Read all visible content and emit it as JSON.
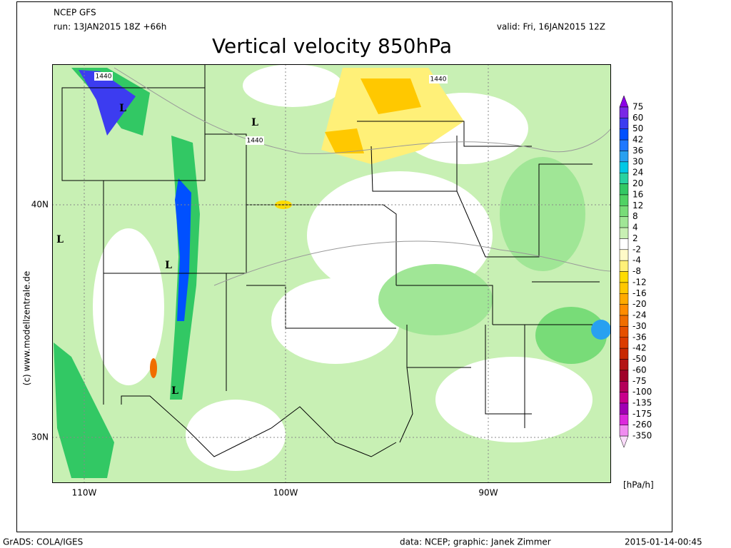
{
  "header": {
    "model": "NCEP GFS",
    "run": "run: 13JAN2015 18Z +66h",
    "valid": "valid: Fri, 16JAN2015 12Z"
  },
  "title": "Vertical velocity 850hPa",
  "map": {
    "lat_labels": [
      "40N",
      "30N"
    ],
    "lon_labels": [
      "110W",
      "100W",
      "90W"
    ],
    "contour_labels": [
      "1440",
      "1440",
      "1440"
    ],
    "lows": [
      "L",
      "L",
      "L",
      "L",
      "L"
    ],
    "credit": "(c) www.modellzentrale.de"
  },
  "colorbar": {
    "levels": [
      75,
      60,
      50,
      42,
      36,
      30,
      24,
      20,
      16,
      12,
      8,
      4,
      2,
      -2,
      -4,
      -8,
      -12,
      -16,
      -20,
      -24,
      -30,
      -36,
      -42,
      -50,
      -60,
      -75,
      -100,
      -135,
      -175,
      -260,
      -350
    ],
    "colors": [
      "#8c00e6",
      "#7a28e6",
      "#3c3cf0",
      "#0050ff",
      "#1e78ff",
      "#28a0f0",
      "#00c8e6",
      "#28d2a0",
      "#32c864",
      "#50d264",
      "#78dc78",
      "#a0e696",
      "#c8f0b4",
      "#ffffff",
      "#fffac8",
      "#fff078",
      "#ffdc00",
      "#ffc800",
      "#ffaa00",
      "#ff8c00",
      "#f06e00",
      "#e65000",
      "#dc3c00",
      "#c82800",
      "#b41414",
      "#a00028",
      "#b4005a",
      "#c8008c",
      "#a000b4",
      "#dc28dc",
      "#f08cf0",
      "#fadcfa"
    ],
    "unit": "[hPa/h]"
  },
  "footer": {
    "software": "GrADS: COLA/IGES",
    "credit": "data: NCEP; graphic: Janek Zimmer",
    "timestamp": "2015-01-14-00:45"
  }
}
